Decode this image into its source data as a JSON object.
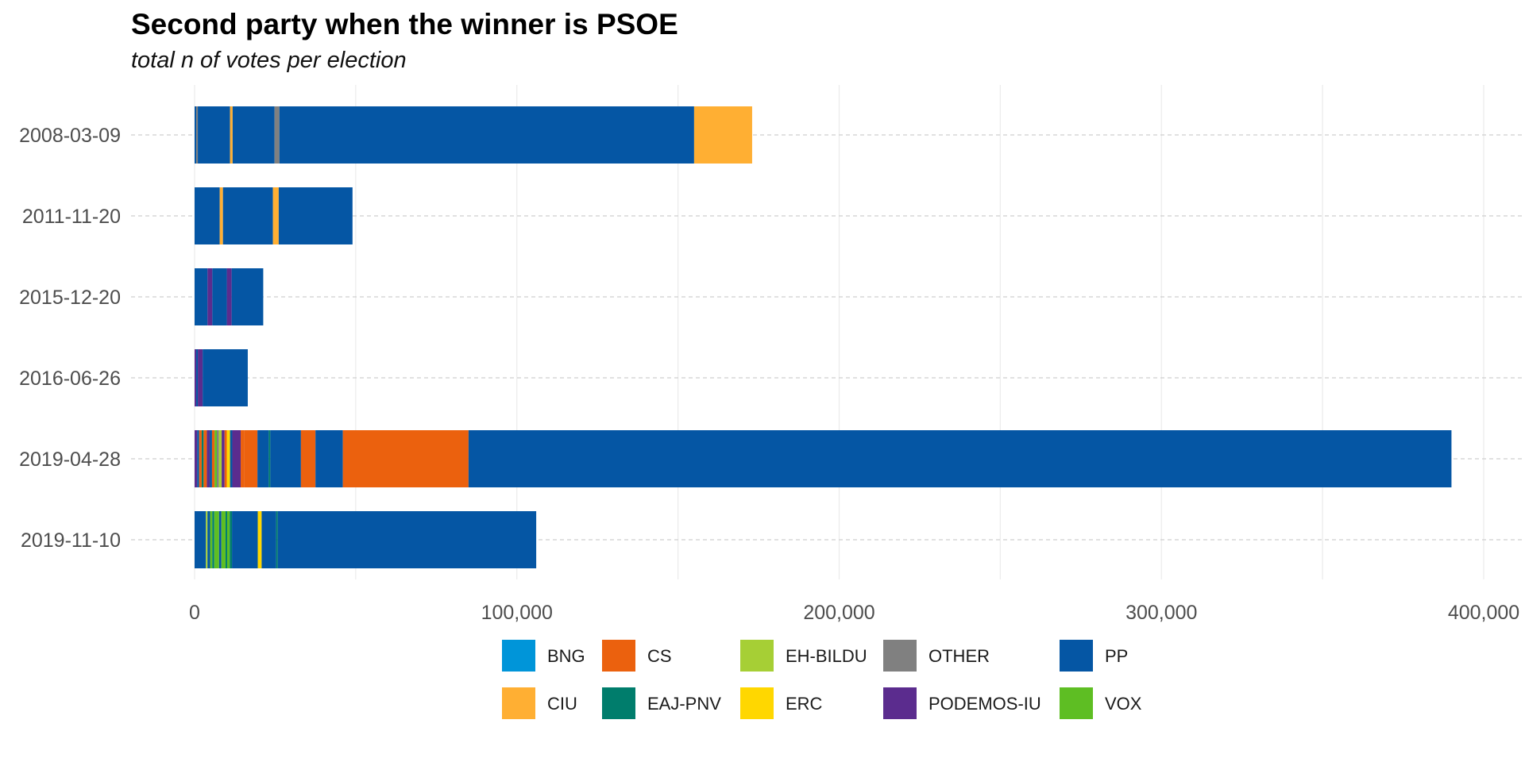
{
  "chart_data": {
    "type": "bar",
    "orientation": "horizontal",
    "stacked": true,
    "title": "Second party when the winner is PSOE",
    "subtitle": "total n of votes per election",
    "xlabel": "",
    "ylabel": "",
    "xlim": [
      0,
      400000
    ],
    "x_ticks": [
      {
        "value": 0,
        "label": "0"
      },
      {
        "value": 100000,
        "label": "100,000"
      },
      {
        "value": 200000,
        "label": "200,000"
      },
      {
        "value": 300000,
        "label": "300,000"
      },
      {
        "value": 400000,
        "label": "400,000"
      }
    ],
    "grid": true,
    "legend_position": "bottom",
    "categories": [
      "2008-03-09",
      "2011-11-20",
      "2015-12-20",
      "2016-06-26",
      "2019-04-28",
      "2019-11-10"
    ],
    "parties": [
      {
        "name": "BNG",
        "color": "#0095D9"
      },
      {
        "name": "CIU",
        "color": "#FFAF33"
      },
      {
        "name": "CS",
        "color": "#EB610E"
      },
      {
        "name": "EAJ-PNV",
        "color": "#007D6C"
      },
      {
        "name": "EH-BILDU",
        "color": "#A6CF35"
      },
      {
        "name": "ERC",
        "color": "#FFD700"
      },
      {
        "name": "OTHER",
        "color": "#808080"
      },
      {
        "name": "PODEMOS-IU",
        "color": "#5B2C8E"
      },
      {
        "name": "PP",
        "color": "#0556A4"
      },
      {
        "name": "VOX",
        "color": "#5EBE23"
      }
    ],
    "stacks": [
      {
        "date": "2008-03-09",
        "segments": [
          {
            "party": "PP",
            "value": 500
          },
          {
            "party": "OTHER",
            "value": 500
          },
          {
            "party": "PP",
            "value": 10000
          },
          {
            "party": "CIU",
            "value": 800
          },
          {
            "party": "PP",
            "value": 13000
          },
          {
            "party": "OTHER",
            "value": 1500
          },
          {
            "party": "PP",
            "value": 128700
          },
          {
            "party": "CIU",
            "value": 18000
          }
        ]
      },
      {
        "date": "2011-11-20",
        "segments": [
          {
            "party": "PP",
            "value": 7800
          },
          {
            "party": "CIU",
            "value": 1000
          },
          {
            "party": "PP",
            "value": 15500
          },
          {
            "party": "CIU",
            "value": 1800
          },
          {
            "party": "PP",
            "value": 22900
          }
        ]
      },
      {
        "date": "2015-12-20",
        "segments": [
          {
            "party": "PP",
            "value": 4000
          },
          {
            "party": "PODEMOS-IU",
            "value": 1500
          },
          {
            "party": "PP",
            "value": 4500
          },
          {
            "party": "PODEMOS-IU",
            "value": 1500
          },
          {
            "party": "PP",
            "value": 9800
          }
        ]
      },
      {
        "date": "2016-06-26",
        "segments": [
          {
            "party": "PODEMOS-IU",
            "value": 500
          },
          {
            "party": "PP",
            "value": 500
          },
          {
            "party": "PODEMOS-IU",
            "value": 1500
          },
          {
            "party": "PP",
            "value": 14000
          }
        ]
      },
      {
        "date": "2019-04-28",
        "segments": [
          {
            "party": "PODEMOS-IU",
            "value": 800
          },
          {
            "party": "PP",
            "value": 600
          },
          {
            "party": "CS",
            "value": 800
          },
          {
            "party": "EAJ-PNV",
            "value": 600
          },
          {
            "party": "CS",
            "value": 1000
          },
          {
            "party": "PODEMOS-IU",
            "value": 900
          },
          {
            "party": "PP",
            "value": 700
          },
          {
            "party": "CS",
            "value": 800
          },
          {
            "party": "VOX",
            "value": 700
          },
          {
            "party": "OTHER",
            "value": 600
          },
          {
            "party": "EH-BILDU",
            "value": 900
          },
          {
            "party": "PODEMOS-IU",
            "value": 900
          },
          {
            "party": "CS",
            "value": 700
          },
          {
            "party": "ERC",
            "value": 1000
          },
          {
            "party": "PP",
            "value": 700
          },
          {
            "party": "PODEMOS-IU",
            "value": 2600
          },
          {
            "party": "CS",
            "value": 1200
          },
          {
            "party": "CS",
            "value": 4000
          },
          {
            "party": "PP",
            "value": 3500
          },
          {
            "party": "EAJ-PNV",
            "value": 500
          },
          {
            "party": "PP",
            "value": 9500
          },
          {
            "party": "CS",
            "value": 4500
          },
          {
            "party": "PP",
            "value": 8500
          },
          {
            "party": "CS",
            "value": 39000
          },
          {
            "party": "PP",
            "value": 305000
          }
        ]
      },
      {
        "date": "2019-11-10",
        "segments": [
          {
            "party": "PP",
            "value": 3500
          },
          {
            "party": "EH-BILDU",
            "value": 500
          },
          {
            "party": "PP",
            "value": 800
          },
          {
            "party": "VOX",
            "value": 700
          },
          {
            "party": "EAJ-PNV",
            "value": 600
          },
          {
            "party": "VOX",
            "value": 1500
          },
          {
            "party": "PP",
            "value": 700
          },
          {
            "party": "VOX",
            "value": 1300
          },
          {
            "party": "EAJ-PNV",
            "value": 500
          },
          {
            "party": "VOX",
            "value": 800
          },
          {
            "party": "EAJ-PNV",
            "value": 700
          },
          {
            "party": "PP",
            "value": 8000
          },
          {
            "party": "ERC",
            "value": 1200
          },
          {
            "party": "PP",
            "value": 4500
          },
          {
            "party": "EAJ-PNV",
            "value": 500
          },
          {
            "party": "PP",
            "value": 80200
          }
        ]
      }
    ],
    "legend": {
      "rows": [
        [
          "BNG",
          "CS",
          "EH-BILDU",
          "OTHER",
          "PP"
        ],
        [
          "CIU",
          "EAJ-PNV",
          "ERC",
          "PODEMOS-IU",
          "VOX"
        ]
      ]
    }
  }
}
